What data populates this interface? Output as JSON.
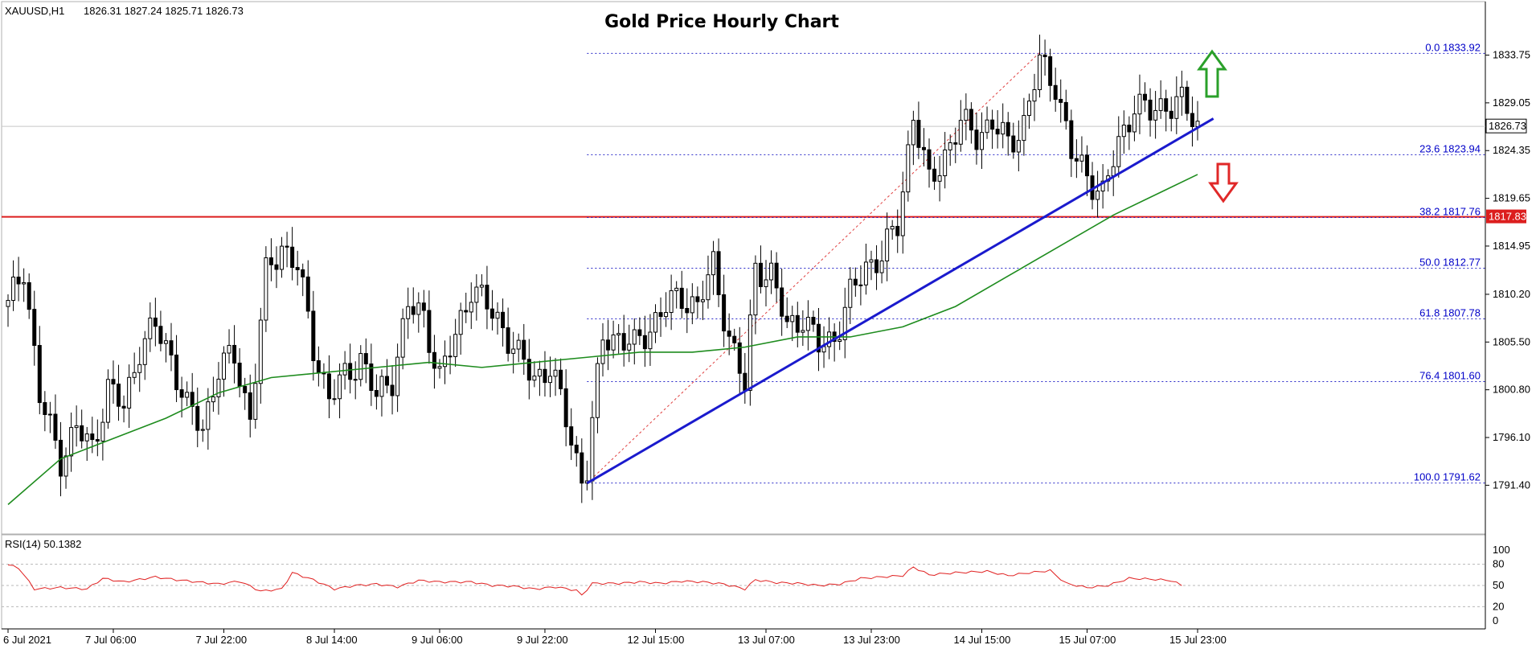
{
  "header": {
    "symbol": "XAUUSD,H1",
    "ohlc": "1826.31 1827.24 1825.71 1826.73",
    "title": "Gold Price Hourly Chart"
  },
  "indicator": {
    "label": "RSI(14) 50.1382",
    "levels": [
      "100",
      "80",
      "50",
      "20",
      "0"
    ]
  },
  "price_labels": {
    "current": "1826.73",
    "resistance": "1817.83"
  },
  "colors": {
    "ma": "#1e8c1e",
    "trendline": "#1a1acd",
    "resistance": "#dc1e1e",
    "fibonacci": "#2828c8",
    "rsi": "#e02020",
    "up_arrow": "#2aa02a",
    "down_arrow": "#e02828"
  },
  "chart_data": {
    "type": "candlestick",
    "title": "Gold Price Hourly Chart",
    "symbol": "XAUUSD",
    "timeframe": "H1",
    "y_ticks": [
      "1833.75",
      "1829.05",
      "1824.35",
      "1819.65",
      "1814.95",
      "1810.20",
      "1805.50",
      "1800.80",
      "1796.10",
      "1791.40"
    ],
    "ylim": [
      1788.5,
      1836.8
    ],
    "x_ticks": [
      "6 Jul 2021",
      "7 Jul 06:00",
      "7 Jul 22:00",
      "8 Jul 14:00",
      "9 Jul 06:00",
      "9 Jul 22:00",
      "12 Jul 15:00",
      "13 Jul 07:00",
      "13 Jul 23:00",
      "14 Jul 15:00",
      "15 Jul 07:00",
      "15 Jul 23:00"
    ],
    "current_price": 1826.73,
    "resistance_level": 1817.83,
    "fibonacci": [
      {
        "label": "0.0 1833.92",
        "level": 1833.92
      },
      {
        "label": "23.6 1823.94",
        "level": 1823.94
      },
      {
        "label": "38.2 1817.76",
        "level": 1817.76
      },
      {
        "label": "50.0 1812.77",
        "level": 1812.77
      },
      {
        "label": "61.8 1807.78",
        "level": 1807.78
      },
      {
        "label": "76.4 1801.60",
        "level": 1801.6
      },
      {
        "label": "100.0 1791.62",
        "level": 1791.62
      }
    ],
    "close_path": [
      [
        0,
        1809
      ],
      [
        3,
        1813
      ],
      [
        6,
        1800
      ],
      [
        10,
        1794
      ],
      [
        13,
        1797
      ],
      [
        16,
        1795
      ],
      [
        19,
        1801
      ],
      [
        22,
        1799
      ],
      [
        25,
        1805
      ],
      [
        28,
        1807
      ],
      [
        31,
        1804
      ],
      [
        34,
        1799
      ],
      [
        37,
        1797
      ],
      [
        40,
        1803
      ],
      [
        43,
        1804
      ],
      [
        46,
        1798
      ],
      [
        49,
        1812
      ],
      [
        52,
        1815
      ],
      [
        55,
        1813
      ],
      [
        58,
        1805
      ],
      [
        61,
        1800
      ],
      [
        64,
        1802
      ],
      [
        67,
        1804
      ],
      [
        70,
        1800
      ],
      [
        73,
        1802
      ],
      [
        76,
        1809
      ],
      [
        79,
        1808
      ],
      [
        82,
        1802
      ],
      [
        85,
        1806
      ],
      [
        88,
        1811
      ],
      [
        91,
        1809
      ],
      [
        94,
        1807
      ],
      [
        97,
        1804
      ],
      [
        100,
        1802
      ],
      [
        103,
        1803
      ],
      [
        106,
        1798
      ],
      [
        109,
        1792
      ],
      [
        110,
        1793
      ],
      [
        113,
        1806
      ],
      [
        116,
        1806
      ],
      [
        119,
        1805
      ],
      [
        122,
        1807
      ],
      [
        125,
        1809
      ],
      [
        128,
        1810
      ],
      [
        131,
        1809
      ],
      [
        134,
        1813
      ],
      [
        137,
        1806
      ],
      [
        140,
        1801
      ],
      [
        142,
        1813
      ],
      [
        145,
        1812
      ],
      [
        148,
        1807
      ],
      [
        151,
        1808
      ],
      [
        154,
        1805
      ],
      [
        157,
        1806
      ],
      [
        160,
        1810
      ],
      [
        163,
        1813
      ],
      [
        166,
        1814
      ],
      [
        169,
        1817
      ],
      [
        172,
        1828
      ],
      [
        175,
        1821
      ],
      [
        178,
        1824
      ],
      [
        181,
        1827
      ],
      [
        184,
        1826
      ],
      [
        187,
        1827
      ],
      [
        190,
        1825
      ],
      [
        193,
        1827
      ],
      [
        196,
        1833
      ],
      [
        199,
        1831
      ],
      [
        202,
        1824
      ],
      [
        205,
        1822
      ],
      [
        208,
        1820
      ],
      [
        211,
        1825
      ],
      [
        214,
        1829
      ],
      [
        217,
        1828
      ],
      [
        220,
        1829
      ],
      [
        223,
        1829
      ],
      [
        226,
        1826.7
      ]
    ],
    "ma_path": [
      [
        0,
        1789.5
      ],
      [
        10,
        1794
      ],
      [
        20,
        1796
      ],
      [
        30,
        1798
      ],
      [
        40,
        1800.5
      ],
      [
        50,
        1802
      ],
      [
        60,
        1802.5
      ],
      [
        70,
        1803
      ],
      [
        80,
        1803.5
      ],
      [
        90,
        1803
      ],
      [
        100,
        1803.5
      ],
      [
        110,
        1804
      ],
      [
        120,
        1804.5
      ],
      [
        130,
        1804.5
      ],
      [
        140,
        1805
      ],
      [
        150,
        1806
      ],
      [
        160,
        1806
      ],
      [
        170,
        1807
      ],
      [
        180,
        1809
      ],
      [
        190,
        1812
      ],
      [
        200,
        1815
      ],
      [
        210,
        1818
      ],
      [
        220,
        1820.5
      ],
      [
        226,
        1822
      ]
    ],
    "rsi_path": [
      [
        0,
        79
      ],
      [
        2,
        75
      ],
      [
        5,
        45
      ],
      [
        10,
        47
      ],
      [
        15,
        45
      ],
      [
        18,
        60
      ],
      [
        22,
        55
      ],
      [
        28,
        62
      ],
      [
        32,
        58
      ],
      [
        36,
        55
      ],
      [
        40,
        52
      ],
      [
        44,
        56
      ],
      [
        48,
        42
      ],
      [
        52,
        45
      ],
      [
        54,
        68
      ],
      [
        58,
        58
      ],
      [
        62,
        45
      ],
      [
        66,
        50
      ],
      [
        70,
        52
      ],
      [
        74,
        48
      ],
      [
        78,
        57
      ],
      [
        82,
        55
      ],
      [
        88,
        55
      ],
      [
        92,
        50
      ],
      [
        96,
        49
      ],
      [
        100,
        45
      ],
      [
        104,
        48
      ],
      [
        108,
        43
      ],
      [
        109,
        36
      ],
      [
        111,
        53
      ],
      [
        116,
        53
      ],
      [
        120,
        55
      ],
      [
        124,
        53
      ],
      [
        128,
        56
      ],
      [
        132,
        55
      ],
      [
        136,
        52
      ],
      [
        140,
        45
      ],
      [
        142,
        58
      ],
      [
        146,
        54
      ],
      [
        150,
        53
      ],
      [
        154,
        50
      ],
      [
        158,
        52
      ],
      [
        162,
        60
      ],
      [
        166,
        62
      ],
      [
        170,
        64
      ],
      [
        172,
        76
      ],
      [
        175,
        65
      ],
      [
        180,
        68
      ],
      [
        186,
        70
      ],
      [
        190,
        64
      ],
      [
        194,
        68
      ],
      [
        198,
        71
      ],
      [
        201,
        53
      ],
      [
        205,
        47
      ],
      [
        209,
        50
      ],
      [
        213,
        60
      ],
      [
        217,
        59
      ],
      [
        221,
        57
      ],
      [
        223,
        50
      ]
    ],
    "trendline": {
      "from": [
        110,
        1791.6
      ],
      "to": [
        229,
        1827.5
      ]
    },
    "fib_swing": {
      "from": [
        110,
        1791.6
      ],
      "to": [
        196,
        1834.0
      ]
    },
    "rsi_range": [
      0,
      100
    ]
  }
}
